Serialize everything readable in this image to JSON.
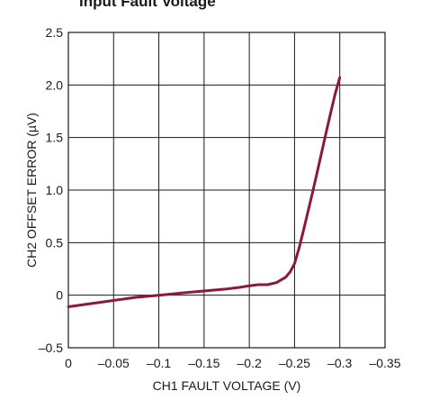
{
  "chart_data": {
    "type": "line",
    "title": "Input Fault Voltage",
    "xlabel": "CH1 FAULT VOLTAGE (V)",
    "ylabel": "CH2 OFFSET ERROR (µV)",
    "xlim": [
      0,
      -0.35
    ],
    "ylim": [
      -0.5,
      2.5
    ],
    "x_tick_labels": [
      "0",
      "–0.05",
      "–0.1",
      "–0.15",
      "–0.2",
      "–0.25",
      "–0.3",
      "–0.35"
    ],
    "y_tick_labels": [
      "–0.5",
      "0",
      "0.5",
      "1.0",
      "1.5",
      "2.0",
      "2.5"
    ],
    "grid": true,
    "series": [
      {
        "color": "#8b1a3a",
        "x": [
          0,
          -0.025,
          -0.05,
          -0.075,
          -0.1,
          -0.125,
          -0.15,
          -0.175,
          -0.19,
          -0.2,
          -0.21,
          -0.22,
          -0.23,
          -0.24,
          -0.245,
          -0.25,
          -0.255,
          -0.26,
          -0.265,
          -0.27,
          -0.275,
          -0.28,
          -0.285,
          -0.29,
          -0.295,
          -0.3
        ],
        "y": [
          -0.11,
          -0.08,
          -0.05,
          -0.02,
          0.0,
          0.02,
          0.04,
          0.06,
          0.075,
          0.09,
          0.1,
          0.1,
          0.12,
          0.17,
          0.22,
          0.3,
          0.45,
          0.62,
          0.8,
          0.98,
          1.17,
          1.36,
          1.55,
          1.74,
          1.92,
          2.07
        ]
      }
    ]
  }
}
